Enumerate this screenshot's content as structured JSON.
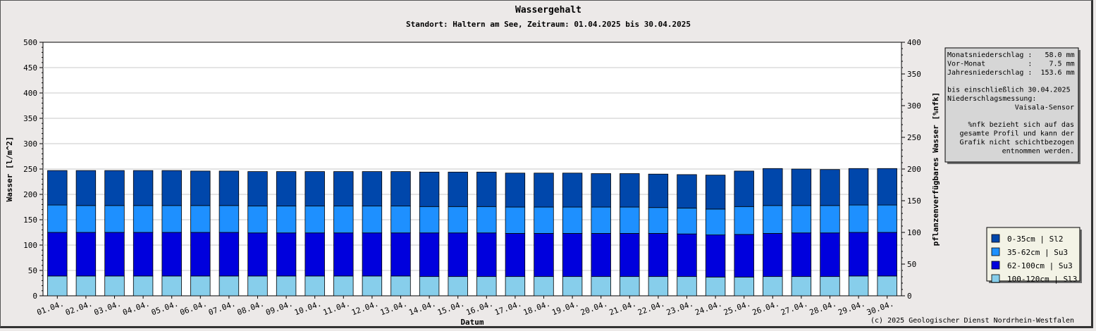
{
  "chart_data": {
    "type": "bar",
    "stacked": true,
    "title": "Wassergehalt",
    "subtitle": "Standort: Haltern am See, Zeitraum: 01.04.2025 bis 30.04.2025",
    "xlabel": "Datum",
    "ylabel": "Wasser [l/m^2]",
    "y2label": "pflanzenverfügbares Wasser [%nfk]",
    "ylim": [
      0,
      500
    ],
    "yticks": [
      0,
      50,
      100,
      150,
      200,
      250,
      300,
      350,
      400,
      450,
      500
    ],
    "y2lim": [
      0,
      400
    ],
    "y2ticks": [
      0,
      50,
      100,
      150,
      200,
      250,
      300,
      350,
      400
    ],
    "grid": true,
    "legend_position": "bottom-right",
    "categories": [
      "01.04.",
      "02.04.",
      "03.04.",
      "04.04.",
      "05.04.",
      "06.04.",
      "07.04.",
      "08.04.",
      "09.04.",
      "10.04.",
      "11.04.",
      "12.04.",
      "13.04.",
      "14.04.",
      "15.04.",
      "16.04.",
      "17.04.",
      "18.04.",
      "19.04.",
      "20.04.",
      "21.04.",
      "22.04.",
      "23.04.",
      "24.04.",
      "25.04.",
      "26.04.",
      "27.04.",
      "28.04.",
      "29.04.",
      "30.04."
    ],
    "series": [
      {
        "name": "100-120cm | Sl3",
        "color": "#87ceeb",
        "values": [
          39,
          39,
          39,
          39,
          39,
          39,
          39,
          39,
          39,
          39,
          39,
          39,
          39,
          38,
          38,
          38,
          38,
          38,
          38,
          38,
          38,
          38,
          38,
          37,
          37,
          38,
          38,
          38,
          39,
          39
        ]
      },
      {
        "name": "62-100cm | Su3",
        "color": "#0000dd",
        "values": [
          86,
          86,
          86,
          86,
          86,
          86,
          86,
          85,
          85,
          85,
          85,
          85,
          85,
          86,
          86,
          86,
          85,
          85,
          85,
          85,
          85,
          85,
          84,
          83,
          84,
          85,
          86,
          86,
          86,
          86
        ]
      },
      {
        "name": "35-62cm | Su3",
        "color": "#1e90ff",
        "values": [
          54,
          53,
          53,
          53,
          53,
          53,
          53,
          53,
          53,
          53,
          53,
          53,
          53,
          52,
          52,
          52,
          52,
          52,
          52,
          52,
          52,
          51,
          51,
          51,
          55,
          55,
          54,
          54,
          54,
          54
        ]
      },
      {
        "name": "0-35cm | Sl2",
        "color": "#0047ab",
        "values": [
          68,
          69,
          69,
          69,
          69,
          68,
          68,
          68,
          68,
          68,
          68,
          68,
          68,
          68,
          68,
          68,
          67,
          67,
          67,
          66,
          66,
          66,
          66,
          67,
          70,
          73,
          72,
          71,
          72,
          72
        ]
      }
    ],
    "legend": [
      {
        "label": "0-35cm | Sl2",
        "color": "#0047ab"
      },
      {
        "label": "35-62cm | Su3",
        "color": "#1e90ff"
      },
      {
        "label": "62-100cm | Su3",
        "color": "#0000dd"
      },
      {
        "label": "100-120cm | Sl3",
        "color": "#87ceeb"
      }
    ]
  },
  "info_box": {
    "lines": [
      {
        "text": "Monatsniederschlag :   58.0 mm",
        "align": "left"
      },
      {
        "text": "Vor-Monat          :    7.5 mm",
        "align": "left"
      },
      {
        "text": "Jahresniederschlag :  153.6 mm",
        "align": "left"
      },
      {
        "text": "",
        "align": "left"
      },
      {
        "text": "bis einschließlich 30.04.2025",
        "align": "left"
      },
      {
        "text": "Niederschlagsmessung:",
        "align": "left"
      },
      {
        "text": "Vaisala-Sensor",
        "align": "right"
      },
      {
        "text": "",
        "align": "left"
      },
      {
        "text": "%nfk bezieht sich auf das",
        "align": "right"
      },
      {
        "text": "gesamte Profil und kann der",
        "align": "right"
      },
      {
        "text": "Grafik nicht schichtbezogen",
        "align": "right"
      },
      {
        "text": "entnommen werden.",
        "align": "right"
      }
    ]
  },
  "copyright": "(c) 2025 Geologischer Dienst Nordrhein-Westfalen"
}
